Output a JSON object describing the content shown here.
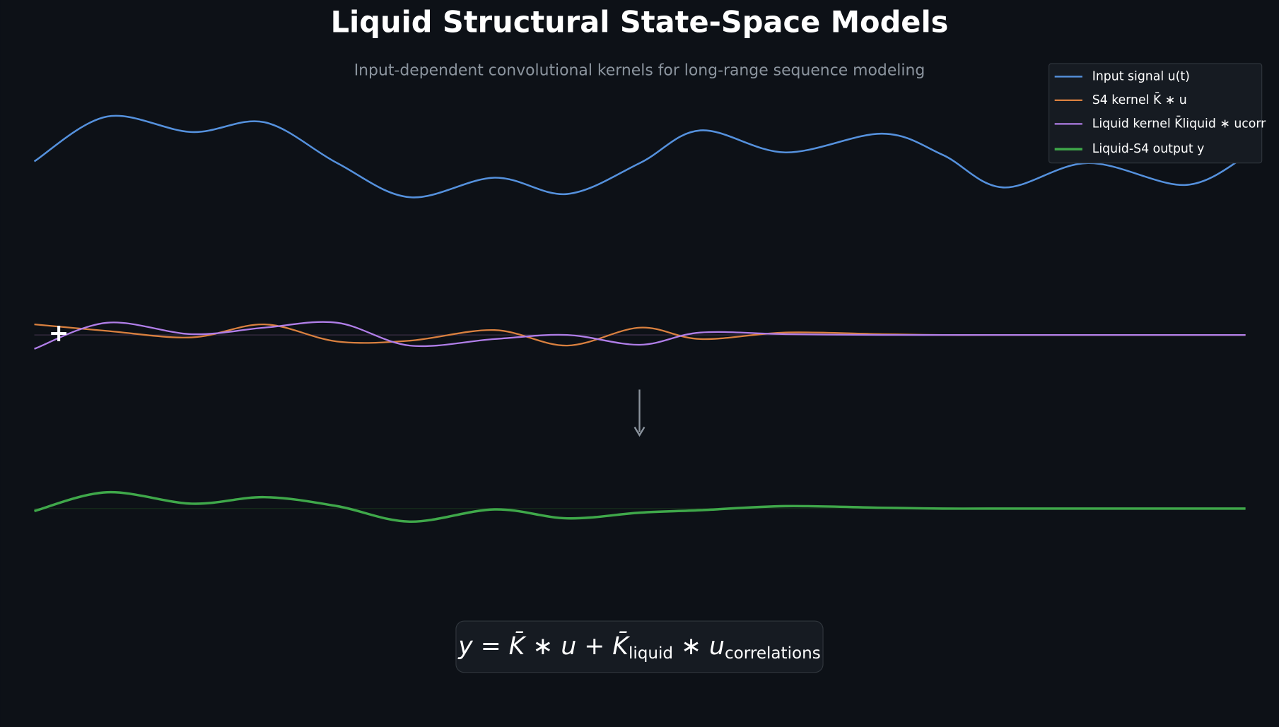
{
  "chart_data": {
    "type": "line",
    "title": "Liquid Structural State-Space Models",
    "subtitle": "Input-dependent convolutional kernels for long-range sequence modeling",
    "annotation": "+",
    "x": [
      0,
      6,
      13,
      19,
      25,
      31,
      38,
      44,
      50,
      55,
      62,
      70,
      75,
      80,
      87,
      95,
      100
    ],
    "series": [
      {
        "name": "Input signal u(t)",
        "color": "#5591dd",
        "values": [
          -0.3,
          5.2,
          3.3,
          4.5,
          -0.5,
          -4.7,
          -2.3,
          -4.3,
          -0.5,
          3.5,
          0.8,
          3.1,
          0.5,
          -3.5,
          -0.5,
          -3.2,
          0.3
        ]
      },
      {
        "name": "S4 kernel K̄ ∗ u",
        "color": "#d9803f",
        "values": [
          1.3,
          0.5,
          -0.3,
          1.3,
          -0.8,
          -0.7,
          0.6,
          -1.3,
          0.9,
          -0.5,
          0.3,
          0.1,
          0,
          0,
          0,
          0,
          0
        ]
      },
      {
        "name": "Liquid kernel K̄liquid ∗ ucorr",
        "color": "#b07ee8",
        "values": [
          -1.7,
          1.5,
          0.1,
          0.9,
          1.5,
          -1.3,
          -0.5,
          0.0,
          -1.2,
          0.3,
          0.1,
          0,
          0,
          0,
          0,
          0,
          0
        ]
      },
      {
        "name": "Liquid-S4 output y",
        "color": "#3fa84a",
        "values": [
          -0.3,
          2.0,
          0.6,
          1.4,
          0.3,
          -1.6,
          -0.1,
          -1.2,
          -0.5,
          -0.2,
          0.3,
          0.1,
          0,
          0,
          0,
          0,
          0
        ]
      }
    ],
    "equation": {
      "main1": "y = K̄ ∗ u  +  K̄",
      "sub1": "liquid",
      "main2": " ∗ u",
      "sub2": "correlations"
    }
  }
}
